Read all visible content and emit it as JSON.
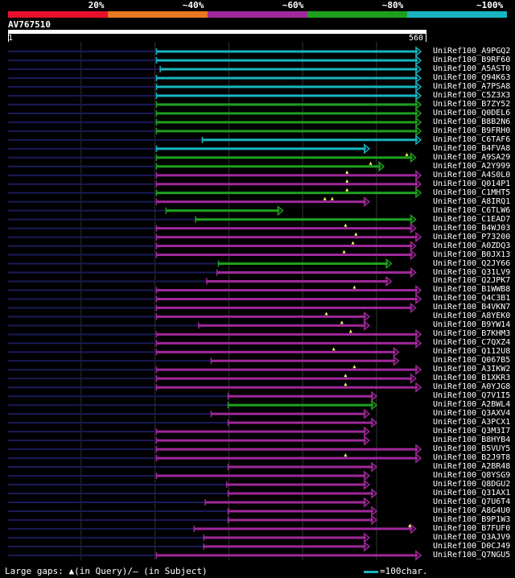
{
  "legend": {
    "segments": [
      {
        "label": "20%",
        "color": "#e8102c"
      },
      {
        "label": "~40%",
        "color": "#e87722"
      },
      {
        "label": "~60%",
        "color": "#a0289a"
      },
      {
        "label": "~80%",
        "color": "#1ea01e"
      },
      {
        "label": "~100%",
        "color": "#17b5c0"
      }
    ]
  },
  "query": {
    "id": "AV767510",
    "start_label": "1",
    "end_label": "560",
    "length": 560
  },
  "colors": {
    "cyan": "#17b5c0",
    "green": "#1ea01e",
    "magenta": "#a0289a",
    "navy": "#1a1a5a",
    "grid": "#333333",
    "marker": "#ffff66"
  },
  "hits": [
    {
      "name": "UniRef100_A9PGQ2",
      "color": "cyan",
      "start": 202,
      "end": 560,
      "markers": []
    },
    {
      "name": "UniRef100_B9RF60",
      "color": "cyan",
      "start": 202,
      "end": 560,
      "markers": []
    },
    {
      "name": "UniRef100_A5AST0",
      "color": "cyan",
      "start": 207,
      "end": 560,
      "markers": []
    },
    {
      "name": "UniRef100_Q94K63",
      "color": "cyan",
      "start": 202,
      "end": 560,
      "markers": []
    },
    {
      "name": "UniRef100_A7PSA8",
      "color": "cyan",
      "start": 202,
      "end": 560,
      "markers": []
    },
    {
      "name": "UniRef100_C5Z3X3",
      "color": "cyan",
      "start": 202,
      "end": 560,
      "markers": []
    },
    {
      "name": "UniRef100_B7ZY52",
      "color": "green",
      "start": 202,
      "end": 560,
      "markers": []
    },
    {
      "name": "UniRef100_Q0DEL6",
      "color": "green",
      "start": 202,
      "end": 560,
      "markers": []
    },
    {
      "name": "UniRef100_B8B2N6",
      "color": "green",
      "start": 202,
      "end": 560,
      "markers": []
    },
    {
      "name": "UniRef100_B9FRH0",
      "color": "green",
      "start": 202,
      "end": 560,
      "markers": []
    },
    {
      "name": "UniRef100_C6TAF6",
      "color": "cyan",
      "start": 264,
      "end": 560,
      "markers": []
    },
    {
      "name": "UniRef100_B4FVA8",
      "color": "cyan",
      "start": 202,
      "end": 490,
      "markers": []
    },
    {
      "name": "UniRef100_A9SA29",
      "color": "green",
      "start": 202,
      "end": 553,
      "markers": [
        541
      ]
    },
    {
      "name": "UniRef100_A2Y999",
      "color": "green",
      "start": 202,
      "end": 510,
      "markers": [
        492
      ]
    },
    {
      "name": "UniRef100_A4S0L0",
      "color": "magenta",
      "start": 202,
      "end": 560,
      "markers": [
        460
      ]
    },
    {
      "name": "UniRef100_Q014P1",
      "color": "magenta",
      "start": 202,
      "end": 560,
      "markers": [
        460
      ]
    },
    {
      "name": "UniRef100_C1MHT5",
      "color": "green",
      "start": 202,
      "end": 560,
      "markers": [
        460
      ]
    },
    {
      "name": "UniRef100_A8IRQ1",
      "color": "magenta",
      "start": 202,
      "end": 490,
      "markers": [
        430,
        440
      ]
    },
    {
      "name": "UniRef100_C6TLW6",
      "color": "green",
      "start": 215,
      "end": 373,
      "markers": []
    },
    {
      "name": "UniRef100_C1EAD7",
      "color": "green",
      "start": 255,
      "end": 553,
      "markers": []
    },
    {
      "name": "UniRef100_B4WJ03",
      "color": "magenta",
      "start": 202,
      "end": 553,
      "markers": [
        458
      ]
    },
    {
      "name": "UniRef100_P73200",
      "color": "magenta",
      "start": 202,
      "end": 560,
      "markers": [
        472
      ]
    },
    {
      "name": "UniRef100_A0ZDQ3",
      "color": "magenta",
      "start": 202,
      "end": 553,
      "markers": [
        468
      ]
    },
    {
      "name": "UniRef100_B0JX13",
      "color": "magenta",
      "start": 202,
      "end": 553,
      "markers": [
        456
      ]
    },
    {
      "name": "UniRef100_Q2JY66",
      "color": "green",
      "start": 286,
      "end": 520,
      "markers": []
    },
    {
      "name": "UniRef100_Q31LV9",
      "color": "magenta",
      "start": 284,
      "end": 553,
      "markers": []
    },
    {
      "name": "UniRef100_Q2JPK7",
      "color": "magenta",
      "start": 270,
      "end": 520,
      "markers": []
    },
    {
      "name": "UniRef100_B1WWB8",
      "color": "magenta",
      "start": 202,
      "end": 560,
      "markers": [
        470
      ]
    },
    {
      "name": "UniRef100_Q4C3B1",
      "color": "magenta",
      "start": 202,
      "end": 560,
      "markers": []
    },
    {
      "name": "UniRef100_B4VKN7",
      "color": "magenta",
      "start": 202,
      "end": 553,
      "markers": []
    },
    {
      "name": "UniRef100_A8YEK0",
      "color": "magenta",
      "start": 202,
      "end": 490,
      "markers": [
        432
      ]
    },
    {
      "name": "UniRef100_B9YW14",
      "color": "magenta",
      "start": 259,
      "end": 490,
      "markers": [
        453
      ]
    },
    {
      "name": "UniRef100_B7KHM3",
      "color": "magenta",
      "start": 202,
      "end": 560,
      "markers": [
        465
      ]
    },
    {
      "name": "UniRef100_C7QXZ4",
      "color": "magenta",
      "start": 202,
      "end": 560,
      "markers": []
    },
    {
      "name": "UniRef100_Q112U8",
      "color": "magenta",
      "start": 202,
      "end": 530,
      "markers": [
        442
      ]
    },
    {
      "name": "UniRef100_Q067B5",
      "color": "magenta",
      "start": 276,
      "end": 530,
      "markers": []
    },
    {
      "name": "UniRef100_A3IKW2",
      "color": "magenta",
      "start": 202,
      "end": 560,
      "markers": [
        470
      ]
    },
    {
      "name": "UniRef100_B1XKR3",
      "color": "magenta",
      "start": 202,
      "end": 553,
      "markers": [
        458
      ]
    },
    {
      "name": "UniRef100_A0YJG8",
      "color": "magenta",
      "start": 202,
      "end": 560,
      "markers": [
        458
      ]
    },
    {
      "name": "UniRef100_Q7V1I5",
      "color": "magenta",
      "start": 299,
      "end": 500,
      "markers": []
    },
    {
      "name": "UniRef100_A2BWL4",
      "color": "green",
      "start": 299,
      "end": 500,
      "markers": []
    },
    {
      "name": "UniRef100_Q3AXV4",
      "color": "magenta",
      "start": 276,
      "end": 490,
      "markers": []
    },
    {
      "name": "UniRef100_A3PCX1",
      "color": "magenta",
      "start": 299,
      "end": 500,
      "markers": []
    },
    {
      "name": "UniRef100_Q3M3I7",
      "color": "magenta",
      "start": 202,
      "end": 490,
      "markers": []
    },
    {
      "name": "UniRef100_B8HYB4",
      "color": "magenta",
      "start": 202,
      "end": 490,
      "markers": []
    },
    {
      "name": "UniRef100_B5VUY5",
      "color": "magenta",
      "start": 202,
      "end": 560,
      "markers": []
    },
    {
      "name": "UniRef100_B2J9T8",
      "color": "magenta",
      "start": 202,
      "end": 560,
      "markers": [
        458
      ]
    },
    {
      "name": "UniRef100_A2BR48",
      "color": "magenta",
      "start": 299,
      "end": 500,
      "markers": []
    },
    {
      "name": "UniRef100_Q8YSG9",
      "color": "magenta",
      "start": 202,
      "end": 490,
      "markers": []
    },
    {
      "name": "UniRef100_Q8DGU2",
      "color": "magenta",
      "start": 297,
      "end": 490,
      "markers": []
    },
    {
      "name": "UniRef100_Q31AX1",
      "color": "magenta",
      "start": 299,
      "end": 500,
      "markers": []
    },
    {
      "name": "UniRef100_Q7U6T4",
      "color": "magenta",
      "start": 268,
      "end": 490,
      "markers": []
    },
    {
      "name": "UniRef100_A8G4U0",
      "color": "magenta",
      "start": 299,
      "end": 500,
      "markers": []
    },
    {
      "name": "UniRef100_B9P1W3",
      "color": "magenta",
      "start": 299,
      "end": 500,
      "markers": []
    },
    {
      "name": "UniRef100_B7FUF0",
      "color": "magenta",
      "start": 253,
      "end": 553,
      "markers": [
        545
      ]
    },
    {
      "name": "UniRef100_Q3AJV9",
      "color": "magenta",
      "start": 266,
      "end": 490,
      "markers": []
    },
    {
      "name": "UniRef100_D0CJ49",
      "color": "magenta",
      "start": 266,
      "end": 490,
      "markers": []
    },
    {
      "name": "UniRef100_Q7NGU5",
      "color": "magenta",
      "start": 202,
      "end": 560,
      "markers": []
    }
  ],
  "footer": {
    "note": "Large gaps: ▲(in Query)/— (in Subject)",
    "scale_label": "=100char."
  }
}
